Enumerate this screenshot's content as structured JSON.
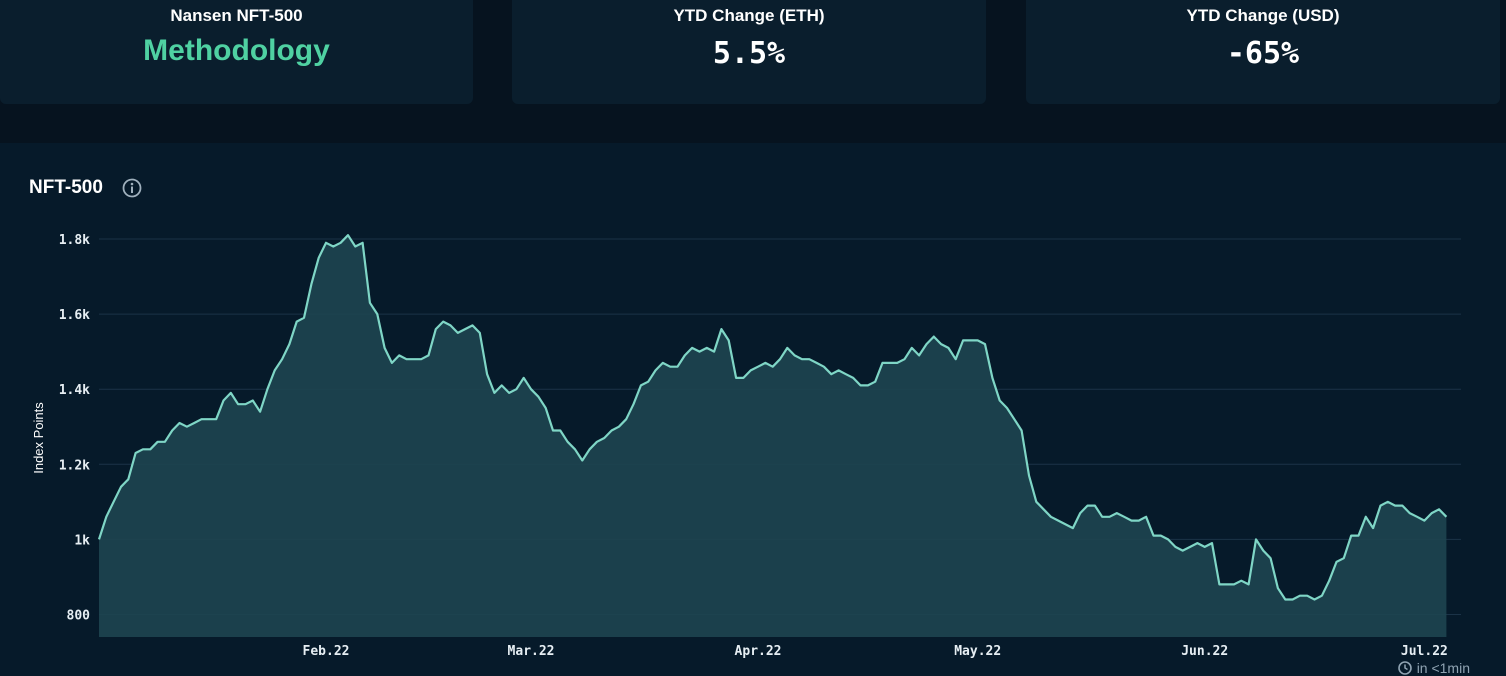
{
  "cards": [
    {
      "label": "Nansen NFT-500",
      "value": "Methodology"
    },
    {
      "label": "YTD Change (ETH)",
      "value": "5.5%"
    },
    {
      "label": "YTD Change (USD)",
      "value": "-65%"
    }
  ],
  "chart_title": "NFT-500",
  "refresh_text": "in <1min",
  "colors": {
    "line": "#7fd6c6",
    "fill": "#1e4550",
    "grid": "#1b3347",
    "accent": "#4fd1a2"
  },
  "chart_data": {
    "type": "area",
    "title": "NFT-500",
    "ylabel": "Index Points",
    "xlabel": "",
    "ylim": [
      800,
      1800
    ],
    "y_ticks": [
      800,
      1000,
      1200,
      1400,
      1600,
      1800
    ],
    "y_tick_labels": [
      "800",
      "1k",
      "1.2k",
      "1.4k",
      "1.6k",
      "1.8k"
    ],
    "x_range": [
      "2022-01-01",
      "2022-07-06"
    ],
    "x_ticks": [
      {
        "date": "2022-02-01",
        "label": "Feb.22"
      },
      {
        "date": "2022-03-01",
        "label": "Mar.22"
      },
      {
        "date": "2022-04-01",
        "label": "Apr.22"
      },
      {
        "date": "2022-05-01",
        "label": "May.22"
      },
      {
        "date": "2022-06-01",
        "label": "Jun.22"
      },
      {
        "date": "2022-07-01",
        "label": "Jul.22"
      }
    ],
    "grid": true,
    "series": [
      {
        "points": [
          [
            "2022-01-01",
            1000
          ],
          [
            "2022-01-02",
            1060
          ],
          [
            "2022-01-03",
            1100
          ],
          [
            "2022-01-04",
            1140
          ],
          [
            "2022-01-05",
            1160
          ],
          [
            "2022-01-06",
            1230
          ],
          [
            "2022-01-07",
            1240
          ],
          [
            "2022-01-08",
            1240
          ],
          [
            "2022-01-09",
            1260
          ],
          [
            "2022-01-10",
            1260
          ],
          [
            "2022-01-11",
            1290
          ],
          [
            "2022-01-12",
            1310
          ],
          [
            "2022-01-13",
            1300
          ],
          [
            "2022-01-14",
            1310
          ],
          [
            "2022-01-15",
            1320
          ],
          [
            "2022-01-16",
            1320
          ],
          [
            "2022-01-17",
            1320
          ],
          [
            "2022-01-18",
            1370
          ],
          [
            "2022-01-19",
            1390
          ],
          [
            "2022-01-20",
            1360
          ],
          [
            "2022-01-21",
            1360
          ],
          [
            "2022-01-22",
            1370
          ],
          [
            "2022-01-23",
            1340
          ],
          [
            "2022-01-24",
            1400
          ],
          [
            "2022-01-25",
            1450
          ],
          [
            "2022-01-26",
            1480
          ],
          [
            "2022-01-27",
            1520
          ],
          [
            "2022-01-28",
            1580
          ],
          [
            "2022-01-29",
            1590
          ],
          [
            "2022-01-30",
            1680
          ],
          [
            "2022-01-31",
            1750
          ],
          [
            "2022-02-01",
            1790
          ],
          [
            "2022-02-02",
            1780
          ],
          [
            "2022-02-03",
            1790
          ],
          [
            "2022-02-04",
            1810
          ],
          [
            "2022-02-05",
            1780
          ],
          [
            "2022-02-06",
            1790
          ],
          [
            "2022-02-07",
            1630
          ],
          [
            "2022-02-08",
            1600
          ],
          [
            "2022-02-09",
            1510
          ],
          [
            "2022-02-10",
            1470
          ],
          [
            "2022-02-11",
            1490
          ],
          [
            "2022-02-12",
            1480
          ],
          [
            "2022-02-13",
            1480
          ],
          [
            "2022-02-14",
            1480
          ],
          [
            "2022-02-15",
            1490
          ],
          [
            "2022-02-16",
            1560
          ],
          [
            "2022-02-17",
            1580
          ],
          [
            "2022-02-18",
            1570
          ],
          [
            "2022-02-19",
            1550
          ],
          [
            "2022-02-20",
            1560
          ],
          [
            "2022-02-21",
            1570
          ],
          [
            "2022-02-22",
            1550
          ],
          [
            "2022-02-23",
            1440
          ],
          [
            "2022-02-24",
            1390
          ],
          [
            "2022-02-25",
            1410
          ],
          [
            "2022-02-26",
            1390
          ],
          [
            "2022-02-27",
            1400
          ],
          [
            "2022-02-28",
            1430
          ],
          [
            "2022-03-01",
            1400
          ],
          [
            "2022-03-02",
            1380
          ],
          [
            "2022-03-03",
            1350
          ],
          [
            "2022-03-04",
            1290
          ],
          [
            "2022-03-05",
            1290
          ],
          [
            "2022-03-06",
            1260
          ],
          [
            "2022-03-07",
            1240
          ],
          [
            "2022-03-08",
            1210
          ],
          [
            "2022-03-09",
            1240
          ],
          [
            "2022-03-10",
            1260
          ],
          [
            "2022-03-11",
            1270
          ],
          [
            "2022-03-12",
            1290
          ],
          [
            "2022-03-13",
            1300
          ],
          [
            "2022-03-14",
            1320
          ],
          [
            "2022-03-15",
            1360
          ],
          [
            "2022-03-16",
            1410
          ],
          [
            "2022-03-17",
            1420
          ],
          [
            "2022-03-18",
            1450
          ],
          [
            "2022-03-19",
            1470
          ],
          [
            "2022-03-20",
            1460
          ],
          [
            "2022-03-21",
            1460
          ],
          [
            "2022-03-22",
            1490
          ],
          [
            "2022-03-23",
            1510
          ],
          [
            "2022-03-24",
            1500
          ],
          [
            "2022-03-25",
            1510
          ],
          [
            "2022-03-26",
            1500
          ],
          [
            "2022-03-27",
            1560
          ],
          [
            "2022-03-28",
            1530
          ],
          [
            "2022-03-29",
            1430
          ],
          [
            "2022-03-30",
            1430
          ],
          [
            "2022-03-31",
            1450
          ],
          [
            "2022-04-01",
            1460
          ],
          [
            "2022-04-02",
            1470
          ],
          [
            "2022-04-03",
            1460
          ],
          [
            "2022-04-04",
            1480
          ],
          [
            "2022-04-05",
            1510
          ],
          [
            "2022-04-06",
            1490
          ],
          [
            "2022-04-07",
            1480
          ],
          [
            "2022-04-08",
            1480
          ],
          [
            "2022-04-09",
            1470
          ],
          [
            "2022-04-10",
            1460
          ],
          [
            "2022-04-11",
            1440
          ],
          [
            "2022-04-12",
            1450
          ],
          [
            "2022-04-13",
            1440
          ],
          [
            "2022-04-14",
            1430
          ],
          [
            "2022-04-15",
            1410
          ],
          [
            "2022-04-16",
            1410
          ],
          [
            "2022-04-17",
            1420
          ],
          [
            "2022-04-18",
            1470
          ],
          [
            "2022-04-19",
            1470
          ],
          [
            "2022-04-20",
            1470
          ],
          [
            "2022-04-21",
            1480
          ],
          [
            "2022-04-22",
            1510
          ],
          [
            "2022-04-23",
            1490
          ],
          [
            "2022-04-24",
            1520
          ],
          [
            "2022-04-25",
            1540
          ],
          [
            "2022-04-26",
            1520
          ],
          [
            "2022-04-27",
            1510
          ],
          [
            "2022-04-28",
            1480
          ],
          [
            "2022-04-29",
            1530
          ],
          [
            "2022-04-30",
            1530
          ],
          [
            "2022-05-01",
            1530
          ],
          [
            "2022-05-02",
            1520
          ],
          [
            "2022-05-03",
            1430
          ],
          [
            "2022-05-04",
            1370
          ],
          [
            "2022-05-05",
            1350
          ],
          [
            "2022-05-06",
            1320
          ],
          [
            "2022-05-07",
            1290
          ],
          [
            "2022-05-08",
            1170
          ],
          [
            "2022-05-09",
            1100
          ],
          [
            "2022-05-10",
            1080
          ],
          [
            "2022-05-11",
            1060
          ],
          [
            "2022-05-12",
            1050
          ],
          [
            "2022-05-13",
            1040
          ],
          [
            "2022-05-14",
            1030
          ],
          [
            "2022-05-15",
            1070
          ],
          [
            "2022-05-16",
            1090
          ],
          [
            "2022-05-17",
            1090
          ],
          [
            "2022-05-18",
            1060
          ],
          [
            "2022-05-19",
            1060
          ],
          [
            "2022-05-20",
            1070
          ],
          [
            "2022-05-21",
            1060
          ],
          [
            "2022-05-22",
            1050
          ],
          [
            "2022-05-23",
            1050
          ],
          [
            "2022-05-24",
            1060
          ],
          [
            "2022-05-25",
            1010
          ],
          [
            "2022-05-26",
            1010
          ],
          [
            "2022-05-27",
            1000
          ],
          [
            "2022-05-28",
            980
          ],
          [
            "2022-05-29",
            970
          ],
          [
            "2022-05-30",
            980
          ],
          [
            "2022-05-31",
            990
          ],
          [
            "2022-06-01",
            980
          ],
          [
            "2022-06-02",
            990
          ],
          [
            "2022-06-03",
            880
          ],
          [
            "2022-06-04",
            880
          ],
          [
            "2022-06-05",
            880
          ],
          [
            "2022-06-06",
            890
          ],
          [
            "2022-06-07",
            880
          ],
          [
            "2022-06-08",
            1000
          ],
          [
            "2022-06-09",
            970
          ],
          [
            "2022-06-10",
            950
          ],
          [
            "2022-06-11",
            870
          ],
          [
            "2022-06-12",
            840
          ],
          [
            "2022-06-13",
            840
          ],
          [
            "2022-06-14",
            850
          ],
          [
            "2022-06-15",
            850
          ],
          [
            "2022-06-16",
            840
          ],
          [
            "2022-06-17",
            850
          ],
          [
            "2022-06-18",
            890
          ],
          [
            "2022-06-19",
            940
          ],
          [
            "2022-06-20",
            950
          ],
          [
            "2022-06-21",
            1010
          ],
          [
            "2022-06-22",
            1010
          ],
          [
            "2022-06-23",
            1060
          ],
          [
            "2022-06-24",
            1030
          ],
          [
            "2022-06-25",
            1090
          ],
          [
            "2022-06-26",
            1100
          ],
          [
            "2022-06-27",
            1090
          ],
          [
            "2022-06-28",
            1090
          ],
          [
            "2022-06-29",
            1070
          ],
          [
            "2022-06-30",
            1060
          ],
          [
            "2022-07-01",
            1050
          ],
          [
            "2022-07-02",
            1070
          ],
          [
            "2022-07-03",
            1080
          ],
          [
            "2022-07-04",
            1060
          ]
        ]
      }
    ]
  }
}
